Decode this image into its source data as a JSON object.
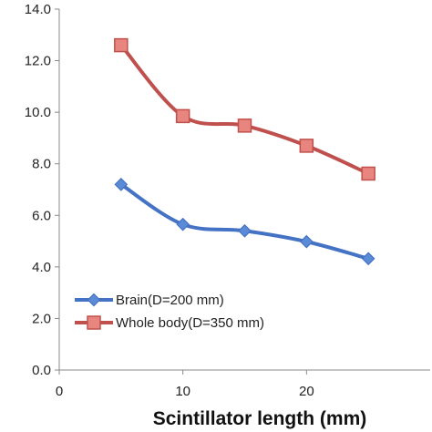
{
  "chart_data": {
    "type": "line",
    "title": "",
    "xlabel": "Scintillator length (mm)",
    "ylabel": "",
    "xlim": [
      0,
      30
    ],
    "ylim": [
      0,
      14
    ],
    "x_ticks": [
      0,
      10,
      20
    ],
    "x_tick_labels": [
      "0",
      "10",
      "20"
    ],
    "y_ticks": [
      0,
      2,
      4,
      6,
      8,
      10,
      12,
      14
    ],
    "y_tick_labels": [
      "0.0",
      "2.0",
      "4.0",
      "6.0",
      "8.0",
      "10.0",
      "12.0",
      "14.0"
    ],
    "grid": false,
    "legend_position": "bottom-left",
    "series": [
      {
        "name": "Brain(D=200 mm)",
        "marker": "diamond",
        "color": "#4472C4",
        "x": [
          5,
          10,
          15,
          20,
          25
        ],
        "values": [
          7.2,
          5.65,
          5.4,
          4.98,
          4.32
        ]
      },
      {
        "name": "Whole body(D=350 mm)",
        "marker": "square",
        "color": "#C0504D",
        "x": [
          5,
          10,
          15,
          20,
          25
        ],
        "values": [
          12.6,
          9.85,
          9.48,
          8.7,
          7.62
        ]
      }
    ]
  }
}
